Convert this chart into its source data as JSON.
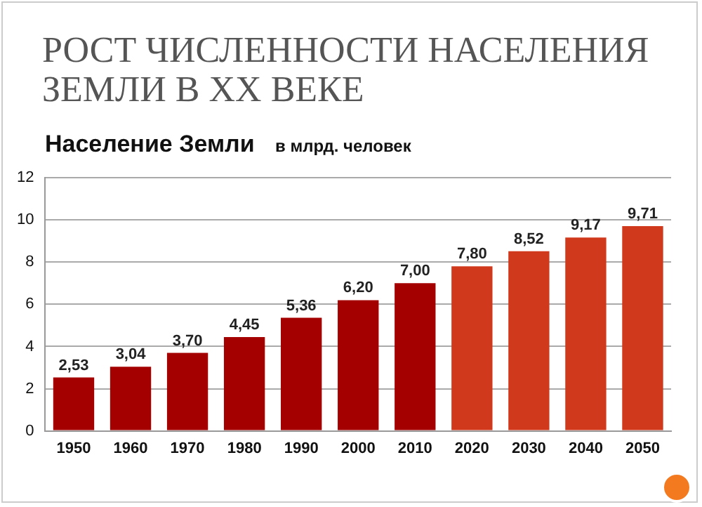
{
  "chart_data": {
    "type": "bar",
    "title": "РОСТ ЧИСЛЕННОСТИ НАСЕЛЕНИЯ ЗЕМЛИ В XX ВЕКЕ",
    "subtitle": "Население Земли",
    "ylabel": "в млрд. человек",
    "categories": [
      "1950",
      "1960",
      "1970",
      "1980",
      "1990",
      "2000",
      "2010",
      "2020",
      "2030",
      "2040",
      "2050"
    ],
    "values": [
      2.53,
      3.04,
      3.7,
      4.45,
      5.36,
      6.2,
      7.0,
      7.8,
      8.52,
      9.17,
      9.71
    ],
    "colors": [
      "#a50000",
      "#a50000",
      "#a50000",
      "#a50000",
      "#a50000",
      "#a50000",
      "#a50000",
      "#d0391c",
      "#d0391c",
      "#d0391c",
      "#d0391c"
    ],
    "value_labels": [
      "2,53",
      "3,04",
      "3,70",
      "4,45",
      "5,36",
      "6,20",
      "7,00",
      "7,80",
      "8,52",
      "9,17",
      "9,71"
    ],
    "ylim": [
      0,
      12
    ],
    "yticks": [
      0,
      2,
      4,
      6,
      8,
      10,
      12
    ],
    "grid": "y",
    "legend": false
  }
}
